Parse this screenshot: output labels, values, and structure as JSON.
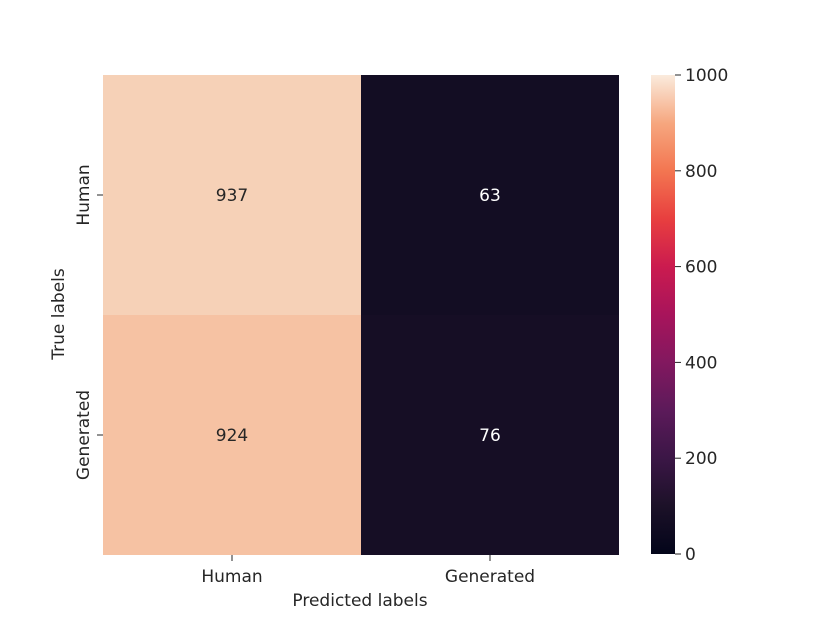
{
  "chart_data": {
    "type": "heatmap",
    "title": "",
    "xlabel": "Predicted labels",
    "ylabel": "True labels",
    "x_categories": [
      "Human",
      "Generated"
    ],
    "y_categories": [
      "Human",
      "Generated"
    ],
    "values": [
      [
        937,
        63
      ],
      [
        924,
        76
      ]
    ],
    "colorbar": {
      "range": [
        0,
        1000
      ],
      "ticks": [
        "0",
        "200",
        "400",
        "600",
        "800",
        "1000"
      ],
      "colormap": "rocket"
    },
    "colors": {
      "cell_low": "#1c1128",
      "cell_high": "#f6d1b7",
      "text_on_light": "#262626",
      "text_on_dark": "#ffffff"
    }
  }
}
